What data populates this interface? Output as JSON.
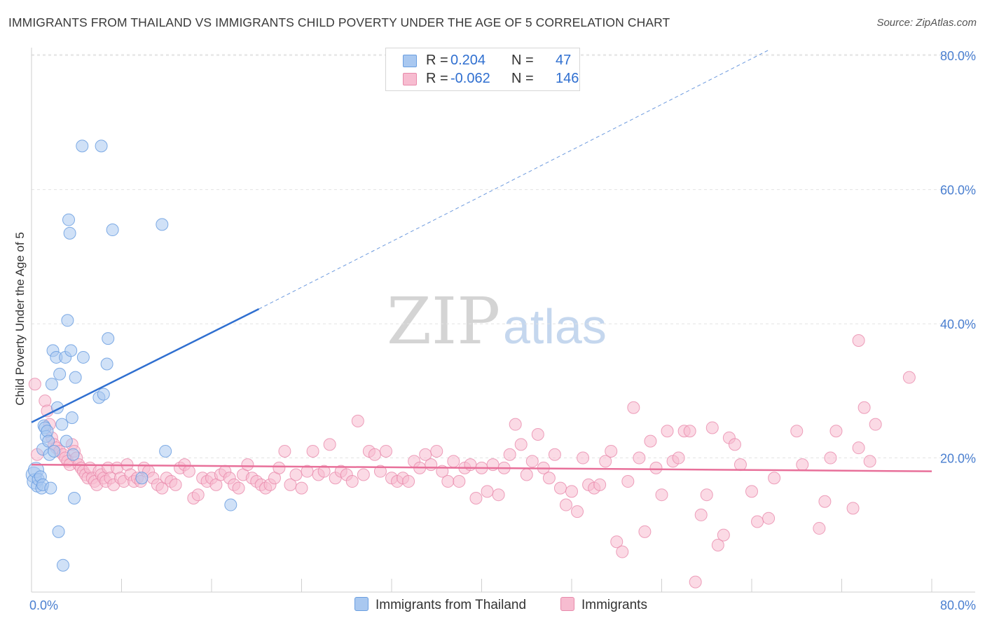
{
  "title": "IMMIGRANTS FROM THAILAND VS IMMIGRANTS CHILD POVERTY UNDER THE AGE OF 5 CORRELATION CHART",
  "source": "Source: ZipAtlas.com",
  "watermark": {
    "zip": "ZIP",
    "atlas": "atlas"
  },
  "legend": {
    "rows": [
      {
        "r_label": "R =",
        "r_value": "0.204",
        "n_label": "N =",
        "n_value": "47",
        "color": "#a9c8f0",
        "border": "#6a9ee0"
      },
      {
        "r_label": "R =",
        "r_value": "-0.062",
        "n_label": "N =",
        "n_value": "146",
        "color": "#f7bcd0",
        "border": "#e88aab"
      }
    ]
  },
  "bottom_legend": {
    "series1": "Immigrants from Thailand",
    "series2": "Immigrants"
  },
  "colors": {
    "blue_fill": "#a9c8f0",
    "blue_stroke": "#6a9ee0",
    "blue_line": "#2f6fd0",
    "pink_fill": "#f7bcd0",
    "pink_stroke": "#e88aab",
    "pink_line": "#e8709a",
    "grid": "#e2e2e2",
    "tick_text": "#4a7fd0"
  },
  "chart_data": {
    "type": "scatter",
    "title": "IMMIGRANTS FROM THAILAND VS IMMIGRANTS CHILD POVERTY UNDER THE AGE OF 5 CORRELATION CHART",
    "xlabel": "",
    "ylabel": "Child Poverty Under the Age of 5",
    "xlim": [
      0,
      80
    ],
    "ylim": [
      0,
      82
    ],
    "x_tick_labels": [
      "0.0%",
      "80.0%"
    ],
    "y_ticks": [
      20,
      40,
      60,
      80
    ],
    "y_tick_labels": [
      "20.0%",
      "40.0%",
      "60.0%",
      "80.0%"
    ],
    "grid": true,
    "series": [
      {
        "name": "Immigrants from Thailand",
        "color": "#a9c8f0",
        "points": [
          [
            0.2,
            17.5
          ],
          [
            0.3,
            16.5
          ],
          [
            0.4,
            18.2
          ],
          [
            0.5,
            15.8
          ],
          [
            0.6,
            16.8
          ],
          [
            0.8,
            17.2
          ],
          [
            0.9,
            15.5
          ],
          [
            1.0,
            21.3
          ],
          [
            1.0,
            16.0
          ],
          [
            1.1,
            24.8
          ],
          [
            1.2,
            24.5
          ],
          [
            1.3,
            23.2
          ],
          [
            1.4,
            24.0
          ],
          [
            1.5,
            22.5
          ],
          [
            1.6,
            20.5
          ],
          [
            1.7,
            15.5
          ],
          [
            1.8,
            31.0
          ],
          [
            1.9,
            36.0
          ],
          [
            2.0,
            21.0
          ],
          [
            2.2,
            35.0
          ],
          [
            2.3,
            27.5
          ],
          [
            2.4,
            9.0
          ],
          [
            2.5,
            32.5
          ],
          [
            2.7,
            25.0
          ],
          [
            2.8,
            4.0
          ],
          [
            3.0,
            35.0
          ],
          [
            3.1,
            22.5
          ],
          [
            3.2,
            40.5
          ],
          [
            3.3,
            55.5
          ],
          [
            3.4,
            53.5
          ],
          [
            3.5,
            36.0
          ],
          [
            3.6,
            26.0
          ],
          [
            3.7,
            20.5
          ],
          [
            3.8,
            14.0
          ],
          [
            3.9,
            32.0
          ],
          [
            4.5,
            66.5
          ],
          [
            4.6,
            35.0
          ],
          [
            6.2,
            66.5
          ],
          [
            6.0,
            29.0
          ],
          [
            6.4,
            29.5
          ],
          [
            6.7,
            34.0
          ],
          [
            6.8,
            37.8
          ],
          [
            7.2,
            54.0
          ],
          [
            9.8,
            17.0
          ],
          [
            11.6,
            54.8
          ],
          [
            11.9,
            21.0
          ],
          [
            17.7,
            13.0
          ]
        ],
        "trend": {
          "x0": 0,
          "y0": 25.3,
          "x_solid_end": 20.2,
          "y_solid_end": 42.2,
          "x1": 65.5,
          "y1": 80.8
        }
      },
      {
        "name": "Immigrants",
        "color": "#f7bcd0",
        "points": [
          [
            0.3,
            31.0
          ],
          [
            0.5,
            20.5
          ],
          [
            1.2,
            28.5
          ],
          [
            1.4,
            27.0
          ],
          [
            1.6,
            25.0
          ],
          [
            1.8,
            23.0
          ],
          [
            2.0,
            22.0
          ],
          [
            2.2,
            21.5
          ],
          [
            2.5,
            21.0
          ],
          [
            2.8,
            20.5
          ],
          [
            3.0,
            20.0
          ],
          [
            3.2,
            19.5
          ],
          [
            3.4,
            19.0
          ],
          [
            3.6,
            22.0
          ],
          [
            3.8,
            21.0
          ],
          [
            4.0,
            20.0
          ],
          [
            4.2,
            19.0
          ],
          [
            4.4,
            18.5
          ],
          [
            4.6,
            18.0
          ],
          [
            4.8,
            17.5
          ],
          [
            5.0,
            17.0
          ],
          [
            5.2,
            18.5
          ],
          [
            5.4,
            17.0
          ],
          [
            5.6,
            16.5
          ],
          [
            5.8,
            16.0
          ],
          [
            6.0,
            18.0
          ],
          [
            6.2,
            17.5
          ],
          [
            6.4,
            17.0
          ],
          [
            6.6,
            16.5
          ],
          [
            6.8,
            18.5
          ],
          [
            7.0,
            17.0
          ],
          [
            7.3,
            16.0
          ],
          [
            7.6,
            18.5
          ],
          [
            7.9,
            17.0
          ],
          [
            8.2,
            16.5
          ],
          [
            8.5,
            19.0
          ],
          [
            8.8,
            17.5
          ],
          [
            9.1,
            16.5
          ],
          [
            9.4,
            17.0
          ],
          [
            9.7,
            16.5
          ],
          [
            10.0,
            18.5
          ],
          [
            10.4,
            18.0
          ],
          [
            10.8,
            17.0
          ],
          [
            11.2,
            16.0
          ],
          [
            11.6,
            15.5
          ],
          [
            12.0,
            17.0
          ],
          [
            12.4,
            16.5
          ],
          [
            12.8,
            16.0
          ],
          [
            13.2,
            18.5
          ],
          [
            13.6,
            19.0
          ],
          [
            14.0,
            18.0
          ],
          [
            14.4,
            14.0
          ],
          [
            14.8,
            14.5
          ],
          [
            15.2,
            17.0
          ],
          [
            15.6,
            16.5
          ],
          [
            16.0,
            17.0
          ],
          [
            16.4,
            16.0
          ],
          [
            16.8,
            17.5
          ],
          [
            17.2,
            18.0
          ],
          [
            17.6,
            17.0
          ],
          [
            18.0,
            16.0
          ],
          [
            18.4,
            15.5
          ],
          [
            18.8,
            17.5
          ],
          [
            19.2,
            19.0
          ],
          [
            19.6,
            17.0
          ],
          [
            20.0,
            16.5
          ],
          [
            20.4,
            16.0
          ],
          [
            20.8,
            15.5
          ],
          [
            21.2,
            16.0
          ],
          [
            21.6,
            17.0
          ],
          [
            22.0,
            18.5
          ],
          [
            22.5,
            21.0
          ],
          [
            23.0,
            16.0
          ],
          [
            23.5,
            17.5
          ],
          [
            24.0,
            15.5
          ],
          [
            24.5,
            18.0
          ],
          [
            25.0,
            21.0
          ],
          [
            25.5,
            17.5
          ],
          [
            26.0,
            18.0
          ],
          [
            26.5,
            22.0
          ],
          [
            27.0,
            17.0
          ],
          [
            27.5,
            18.0
          ],
          [
            28.0,
            17.5
          ],
          [
            28.5,
            16.5
          ],
          [
            29.0,
            25.5
          ],
          [
            29.5,
            17.5
          ],
          [
            30.0,
            21.0
          ],
          [
            30.5,
            20.5
          ],
          [
            31.0,
            18.0
          ],
          [
            31.5,
            21.0
          ],
          [
            32.0,
            17.0
          ],
          [
            32.5,
            16.5
          ],
          [
            33.0,
            17.0
          ],
          [
            33.5,
            16.5
          ],
          [
            34.0,
            19.5
          ],
          [
            34.5,
            18.5
          ],
          [
            35.0,
            20.5
          ],
          [
            35.5,
            19.0
          ],
          [
            36.0,
            21.0
          ],
          [
            36.5,
            18.0
          ],
          [
            37.0,
            16.5
          ],
          [
            37.5,
            19.5
          ],
          [
            38.0,
            16.5
          ],
          [
            38.5,
            18.5
          ],
          [
            39.0,
            19.0
          ],
          [
            39.5,
            14.0
          ],
          [
            40.0,
            18.5
          ],
          [
            40.5,
            15.0
          ],
          [
            41.0,
            19.0
          ],
          [
            41.5,
            14.5
          ],
          [
            42.0,
            18.5
          ],
          [
            42.5,
            20.5
          ],
          [
            43.0,
            25.0
          ],
          [
            43.5,
            22.0
          ],
          [
            44.0,
            17.5
          ],
          [
            44.5,
            19.5
          ],
          [
            45.0,
            23.5
          ],
          [
            45.5,
            18.5
          ],
          [
            46.0,
            17.0
          ],
          [
            46.5,
            20.5
          ],
          [
            47.0,
            15.5
          ],
          [
            47.5,
            13.0
          ],
          [
            48.0,
            15.0
          ],
          [
            48.5,
            12.0
          ],
          [
            49.0,
            20.0
          ],
          [
            49.5,
            16.0
          ],
          [
            50.0,
            15.5
          ],
          [
            50.5,
            16.0
          ],
          [
            51.0,
            19.5
          ],
          [
            51.5,
            21.0
          ],
          [
            52.0,
            7.5
          ],
          [
            52.5,
            6.0
          ],
          [
            53.0,
            16.5
          ],
          [
            53.5,
            27.5
          ],
          [
            54.0,
            20.0
          ],
          [
            54.5,
            9.0
          ],
          [
            55.0,
            22.5
          ],
          [
            55.5,
            18.5
          ],
          [
            56.0,
            14.5
          ],
          [
            56.5,
            24.0
          ],
          [
            57.0,
            19.5
          ],
          [
            57.5,
            20.0
          ],
          [
            58.0,
            24.0
          ],
          [
            58.5,
            24.0
          ],
          [
            59.0,
            1.5
          ],
          [
            59.5,
            11.5
          ],
          [
            60.0,
            14.5
          ],
          [
            60.5,
            24.5
          ],
          [
            61.0,
            7.0
          ],
          [
            61.5,
            8.5
          ],
          [
            62.0,
            23.0
          ],
          [
            62.5,
            22.0
          ],
          [
            63.0,
            19.0
          ],
          [
            64.0,
            15.0
          ],
          [
            64.5,
            10.5
          ],
          [
            65.5,
            11.0
          ],
          [
            66.0,
            17.0
          ],
          [
            68.0,
            24.0
          ],
          [
            68.5,
            19.0
          ],
          [
            70.0,
            9.5
          ],
          [
            70.5,
            13.5
          ],
          [
            71.0,
            20.0
          ],
          [
            71.5,
            24.0
          ],
          [
            73.0,
            12.5
          ],
          [
            73.5,
            21.5
          ],
          [
            74.0,
            27.5
          ],
          [
            74.5,
            19.5
          ],
          [
            75.0,
            25.0
          ],
          [
            73.5,
            37.5
          ],
          [
            78.0,
            32.0
          ]
        ],
        "trend": {
          "x0": 0,
          "y0": 19.0,
          "x1": 80,
          "y1": 18.0
        }
      }
    ]
  }
}
